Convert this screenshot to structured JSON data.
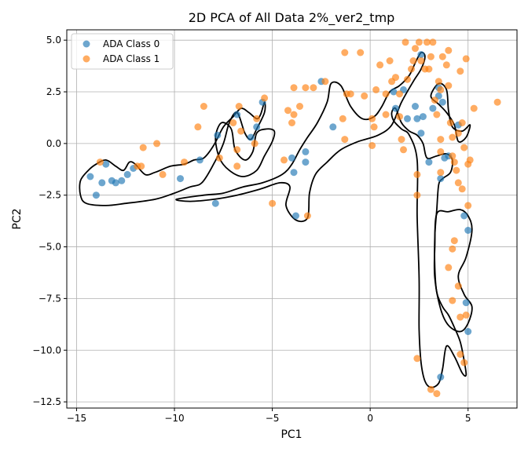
{
  "chart_data": {
    "type": "scatter",
    "title": "2D PCA of All Data 2%_ver2_tmp",
    "xlabel": "PC1",
    "ylabel": "PC2",
    "xlim": [
      -15.5,
      7.5
    ],
    "ylim": [
      -12.8,
      5.5
    ],
    "x_ticks": [
      -15,
      -10,
      -5,
      0,
      5
    ],
    "x_tick_labels": [
      "−15",
      "−10",
      "−5",
      "0",
      "5"
    ],
    "y_ticks": [
      5.0,
      2.5,
      0.0,
      -2.5,
      -5.0,
      -7.5,
      -10.0,
      -12.5
    ],
    "y_tick_labels": [
      "5.0",
      "2.5",
      "0.0",
      "−2.5",
      "−5.0",
      "−7.5",
      "−10.0",
      "−12.5"
    ],
    "grid": true,
    "legend_position": "top-left",
    "series": [
      {
        "name": "ADA Class 0",
        "color": "#1f77b4",
        "points": [
          [
            -14.3,
            -1.6
          ],
          [
            -14.0,
            -2.5
          ],
          [
            -13.7,
            -1.9
          ],
          [
            -13.5,
            -1.0
          ],
          [
            -13.2,
            -1.8
          ],
          [
            -13.0,
            -1.9
          ],
          [
            -12.7,
            -1.8
          ],
          [
            -12.4,
            -1.5
          ],
          [
            -12.1,
            -1.2
          ],
          [
            -9.7,
            -1.7
          ],
          [
            -8.7,
            -0.8
          ],
          [
            -7.9,
            -2.9
          ],
          [
            -7.8,
            0.4
          ],
          [
            -6.8,
            1.4
          ],
          [
            -6.1,
            0.3
          ],
          [
            -5.8,
            0.8
          ],
          [
            -5.5,
            2.0
          ],
          [
            -4.0,
            -0.7
          ],
          [
            -3.9,
            -1.4
          ],
          [
            -3.8,
            -3.5
          ],
          [
            -3.3,
            -0.4
          ],
          [
            -3.3,
            -0.9
          ],
          [
            -2.5,
            3.0
          ],
          [
            -1.9,
            0.8
          ],
          [
            1.2,
            2.5
          ],
          [
            1.3,
            1.7
          ],
          [
            1.7,
            2.6
          ],
          [
            1.9,
            1.2
          ],
          [
            2.3,
            1.8
          ],
          [
            2.4,
            1.2
          ],
          [
            2.6,
            0.5
          ],
          [
            2.7,
            1.3
          ],
          [
            2.6,
            4.3
          ],
          [
            3.0,
            -0.9
          ],
          [
            3.2,
            1.7
          ],
          [
            3.5,
            2.7
          ],
          [
            3.5,
            2.3
          ],
          [
            3.7,
            2.0
          ],
          [
            3.6,
            -1.7
          ],
          [
            3.8,
            -0.7
          ],
          [
            4.0,
            -0.6
          ],
          [
            4.5,
            0.9
          ],
          [
            4.8,
            -3.5
          ],
          [
            4.9,
            -7.7
          ],
          [
            5.0,
            -9.1
          ],
          [
            5.0,
            -4.2
          ],
          [
            3.6,
            -11.3
          ]
        ]
      },
      {
        "name": "ADA Class 1",
        "color": "#ff7f0e",
        "points": [
          [
            -13.8,
            -0.9
          ],
          [
            -11.9,
            -1.1
          ],
          [
            -11.7,
            -1.1
          ],
          [
            -11.6,
            -0.2
          ],
          [
            -10.9,
            0.0
          ],
          [
            -10.6,
            -1.5
          ],
          [
            -9.5,
            -0.9
          ],
          [
            -8.8,
            0.8
          ],
          [
            -8.5,
            1.8
          ],
          [
            -7.7,
            -0.7
          ],
          [
            -7.0,
            1.0
          ],
          [
            -6.8,
            -0.3
          ],
          [
            -6.8,
            -1.1
          ],
          [
            -6.7,
            1.8
          ],
          [
            -6.6,
            0.6
          ],
          [
            -5.9,
            0.0
          ],
          [
            -5.8,
            1.2
          ],
          [
            -5.4,
            2.2
          ],
          [
            -5.0,
            -2.9
          ],
          [
            -4.4,
            -0.8
          ],
          [
            -4.2,
            1.6
          ],
          [
            -4.0,
            1.0
          ],
          [
            -3.9,
            2.7
          ],
          [
            -3.9,
            1.4
          ],
          [
            -3.6,
            1.8
          ],
          [
            -3.3,
            2.7
          ],
          [
            -3.2,
            -3.5
          ],
          [
            -2.9,
            2.7
          ],
          [
            -2.3,
            3.0
          ],
          [
            -1.4,
            1.2
          ],
          [
            -1.3,
            0.2
          ],
          [
            -1.3,
            4.4
          ],
          [
            -1.2,
            2.4
          ],
          [
            -1.0,
            2.4
          ],
          [
            -0.5,
            4.4
          ],
          [
            -0.3,
            2.3
          ],
          [
            0.1,
            1.2
          ],
          [
            0.1,
            -0.1
          ],
          [
            0.2,
            0.8
          ],
          [
            0.3,
            2.6
          ],
          [
            0.5,
            3.8
          ],
          [
            0.8,
            2.4
          ],
          [
            0.8,
            1.4
          ],
          [
            1.0,
            4.0
          ],
          [
            1.1,
            3.0
          ],
          [
            1.3,
            3.2
          ],
          [
            1.5,
            2.4
          ],
          [
            1.5,
            1.3
          ],
          [
            1.6,
            0.2
          ],
          [
            1.7,
            -0.3
          ],
          [
            1.8,
            4.9
          ],
          [
            1.9,
            3.1
          ],
          [
            2.1,
            3.6
          ],
          [
            2.2,
            4.0
          ],
          [
            2.3,
            4.6
          ],
          [
            2.4,
            -1.5
          ],
          [
            2.4,
            -2.5
          ],
          [
            2.5,
            4.9
          ],
          [
            2.6,
            4.0
          ],
          [
            2.8,
            3.6
          ],
          [
            2.9,
            4.9
          ],
          [
            3.0,
            3.6
          ],
          [
            3.1,
            4.2
          ],
          [
            3.2,
            4.9
          ],
          [
            3.3,
            2.1
          ],
          [
            3.4,
            1.4
          ],
          [
            3.5,
            3.0
          ],
          [
            3.6,
            2.6
          ],
          [
            3.6,
            0.2
          ],
          [
            3.6,
            -0.4
          ],
          [
            3.6,
            -1.4
          ],
          [
            3.7,
            4.2
          ],
          [
            3.9,
            3.8
          ],
          [
            4.0,
            2.8
          ],
          [
            4.0,
            4.5
          ],
          [
            4.1,
            1.0
          ],
          [
            4.2,
            0.3
          ],
          [
            4.2,
            -0.6
          ],
          [
            4.3,
            -0.9
          ],
          [
            4.4,
            -1.3
          ],
          [
            4.5,
            -1.9
          ],
          [
            4.5,
            0.5
          ],
          [
            4.6,
            3.5
          ],
          [
            4.7,
            1.0
          ],
          [
            4.7,
            -2.2
          ],
          [
            4.8,
            -0.2
          ],
          [
            4.9,
            4.1
          ],
          [
            5.0,
            -1.0
          ],
          [
            5.1,
            -0.8
          ],
          [
            5.3,
            1.7
          ],
          [
            6.5,
            2.0
          ],
          [
            4.3,
            -4.7
          ],
          [
            4.2,
            -5.1
          ],
          [
            4.0,
            -6.0
          ],
          [
            4.5,
            -6.9
          ],
          [
            4.2,
            -7.6
          ],
          [
            4.6,
            -8.4
          ],
          [
            4.9,
            -8.3
          ],
          [
            5.0,
            -3.0
          ],
          [
            4.6,
            -10.2
          ],
          [
            4.8,
            -10.6
          ],
          [
            2.4,
            -10.4
          ],
          [
            3.1,
            -11.9
          ],
          [
            3.4,
            -12.1
          ]
        ]
      }
    ],
    "contours": [
      [
        [
          -14.4,
          -1.3
        ],
        [
          -14.0,
          -1.0
        ],
        [
          -13.5,
          -0.8
        ],
        [
          -13.0,
          -1.1
        ],
        [
          -12.6,
          -1.3
        ],
        [
          -12.3,
          -0.9
        ],
        [
          -12.0,
          -1.0
        ],
        [
          -11.5,
          -1.5
        ],
        [
          -11.0,
          -1.4
        ],
        [
          -10.2,
          -1.1
        ],
        [
          -9.5,
          -1.0
        ],
        [
          -9.0,
          -0.8
        ],
        [
          -8.5,
          -0.7
        ],
        [
          -8.0,
          -0.1
        ],
        [
          -7.5,
          0.8
        ],
        [
          -7.0,
          1.3
        ],
        [
          -6.6,
          1.7
        ],
        [
          -6.2,
          1.5
        ],
        [
          -5.8,
          1.2
        ],
        [
          -5.6,
          1.4
        ],
        [
          -5.4,
          2.0
        ],
        [
          -5.4,
          1.5
        ],
        [
          -5.8,
          0.7
        ],
        [
          -6.1,
          0.2
        ],
        [
          -6.4,
          0.5
        ],
        [
          -6.8,
          1.5
        ],
        [
          -7.2,
          1.0
        ],
        [
          -7.5,
          0.0
        ],
        [
          -8.0,
          -1.0
        ],
        [
          -8.6,
          -1.9
        ],
        [
          -9.2,
          -2.1
        ],
        [
          -10.0,
          -2.4
        ],
        [
          -11.0,
          -2.7
        ],
        [
          -12.5,
          -2.9
        ],
        [
          -13.5,
          -3.0
        ],
        [
          -14.5,
          -2.9
        ],
        [
          -14.8,
          -2.5
        ],
        [
          -14.8,
          -1.8
        ]
      ],
      [
        [
          -7.6,
          1.0
        ],
        [
          -7.9,
          0.3
        ],
        [
          -7.7,
          -0.7
        ],
        [
          -7.2,
          -1.3
        ],
        [
          -6.5,
          -1.6
        ],
        [
          -5.8,
          -1.3
        ],
        [
          -5.4,
          -0.6
        ],
        [
          -5.0,
          0.1
        ],
        [
          -4.9,
          0.6
        ],
        [
          -5.3,
          0.7
        ],
        [
          -5.8,
          0.5
        ],
        [
          -6.0,
          -0.4
        ],
        [
          -6.4,
          -0.8
        ],
        [
          -6.9,
          -0.3
        ],
        [
          -7.1,
          0.7
        ]
      ],
      [
        [
          -9.9,
          -2.7
        ],
        [
          -8.5,
          -2.5
        ],
        [
          -7.5,
          -2.4
        ],
        [
          -6.5,
          -2.1
        ],
        [
          -5.5,
          -1.9
        ],
        [
          -4.5,
          -1.5
        ],
        [
          -4.0,
          -1.0
        ],
        [
          -3.6,
          -0.3
        ],
        [
          -3.2,
          0.3
        ],
        [
          -2.7,
          1.0
        ],
        [
          -2.2,
          2.0
        ],
        [
          -2.0,
          2.9
        ],
        [
          -1.5,
          2.8
        ],
        [
          -1.0,
          1.8
        ],
        [
          -0.4,
          1.2
        ],
        [
          0.2,
          1.3
        ],
        [
          0.6,
          1.8
        ],
        [
          1.0,
          2.5
        ],
        [
          1.5,
          2.8
        ],
        [
          2.0,
          3.3
        ],
        [
          2.3,
          3.9
        ],
        [
          2.6,
          4.4
        ],
        [
          2.8,
          4.2
        ],
        [
          2.6,
          3.6
        ],
        [
          2.2,
          3.0
        ],
        [
          1.6,
          2.0
        ],
        [
          1.1,
          0.9
        ],
        [
          0.4,
          0.4
        ],
        [
          -0.6,
          0.1
        ],
        [
          -1.5,
          -0.3
        ],
        [
          -2.2,
          -0.9
        ],
        [
          -2.8,
          -1.5
        ],
        [
          -3.1,
          -2.4
        ],
        [
          -3.2,
          -3.6
        ],
        [
          -3.8,
          -3.7
        ],
        [
          -4.3,
          -3.0
        ],
        [
          -4.1,
          -2.1
        ],
        [
          -4.6,
          -1.9
        ],
        [
          -5.6,
          -2.2
        ],
        [
          -6.8,
          -2.5
        ],
        [
          -8.0,
          -2.7
        ],
        [
          -9.2,
          -2.8
        ]
      ],
      [
        [
          1.3,
          1.7
        ],
        [
          1.6,
          1.0
        ],
        [
          2.0,
          0.6
        ],
        [
          2.4,
          0.4
        ],
        [
          2.7,
          0.0
        ],
        [
          2.9,
          -0.7
        ],
        [
          3.4,
          -0.6
        ],
        [
          3.9,
          -0.5
        ],
        [
          4.2,
          -0.8
        ],
        [
          4.1,
          -1.4
        ],
        [
          3.7,
          -1.7
        ],
        [
          3.5,
          -2.0
        ],
        [
          3.4,
          -3.2
        ],
        [
          3.3,
          -4.5
        ],
        [
          3.3,
          -6.0
        ],
        [
          3.4,
          -7.2
        ],
        [
          3.7,
          -7.9
        ],
        [
          4.0,
          -8.3
        ],
        [
          4.3,
          -8.9
        ],
        [
          4.6,
          -9.6
        ],
        [
          4.8,
          -10.5
        ],
        [
          4.9,
          -11.2
        ],
        [
          4.7,
          -11.1
        ],
        [
          4.3,
          -10.3
        ],
        [
          3.9,
          -9.8
        ],
        [
          3.7,
          -10.9
        ],
        [
          3.5,
          -11.6
        ],
        [
          3.1,
          -11.8
        ],
        [
          2.8,
          -11.5
        ],
        [
          2.6,
          -10.6
        ],
        [
          2.5,
          -9.0
        ],
        [
          2.5,
          -6.5
        ],
        [
          2.4,
          -3.5
        ],
        [
          2.4,
          -0.8
        ],
        [
          2.0,
          0.4
        ],
        [
          1.6,
          0.7
        ],
        [
          1.2,
          1.1
        ],
        [
          1.1,
          1.5
        ]
      ],
      [
        [
          3.1,
          2.3
        ],
        [
          3.5,
          2.9
        ],
        [
          3.9,
          2.6
        ],
        [
          4.0,
          1.6
        ],
        [
          4.2,
          0.8
        ],
        [
          4.7,
          0.6
        ],
        [
          5.1,
          0.9
        ],
        [
          4.9,
          0.3
        ],
        [
          4.5,
          0.1
        ],
        [
          4.3,
          0.9
        ],
        [
          3.9,
          1.5
        ],
        [
          3.5,
          1.9
        ]
      ],
      [
        [
          3.4,
          -3.4
        ],
        [
          4.0,
          -3.3
        ],
        [
          4.6,
          -3.2
        ],
        [
          5.0,
          -3.5
        ],
        [
          5.2,
          -4.2
        ],
        [
          4.9,
          -5.5
        ],
        [
          4.5,
          -6.4
        ],
        [
          4.8,
          -7.3
        ],
        [
          5.2,
          -7.9
        ],
        [
          5.0,
          -8.7
        ],
        [
          4.6,
          -9.1
        ],
        [
          4.0,
          -8.8
        ],
        [
          3.6,
          -8.0
        ],
        [
          3.3,
          -6.5
        ],
        [
          3.3,
          -5.0
        ]
      ]
    ]
  }
}
